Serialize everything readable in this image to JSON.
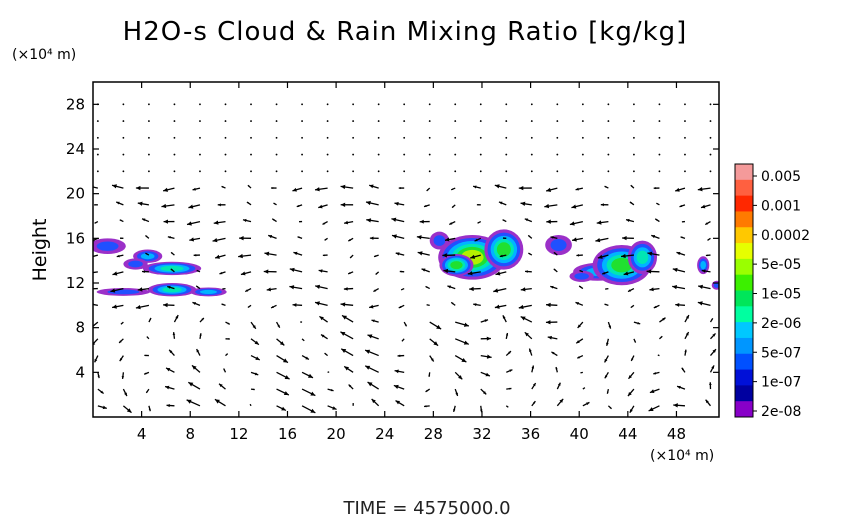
{
  "chart_data": {
    "type": "heatmap",
    "title": "H2O-s Cloud & Rain Mixing Ratio [kg/kg]",
    "ylabel": "Height",
    "xunit": "(×10⁴ m)",
    "yunit": "(×10⁴ m)",
    "footer": "TIME = 4575000.0",
    "xlim": [
      0,
      51.5
    ],
    "ylim": [
      0,
      30
    ],
    "xticks": [
      "4",
      "8",
      "12",
      "16",
      "20",
      "24",
      "28",
      "32",
      "36",
      "40",
      "44",
      "48"
    ],
    "yticks": [
      "4",
      "8",
      "12",
      "16",
      "20",
      "24",
      "28"
    ],
    "colorbar": {
      "labels": [
        "0.005",
        "0.001",
        "0.0002",
        "5e-05",
        "1e-05",
        "2e-06",
        "5e-07",
        "1e-07",
        "2e-08"
      ],
      "colors": [
        "#f49a9a",
        "#ff6040",
        "#ff2800",
        "#ff7a00",
        "#ffc800",
        "#e6ff00",
        "#9aff00",
        "#3cf000",
        "#00e65a",
        "#00ffa0",
        "#00c8ff",
        "#0096ff",
        "#0050ff",
        "#0010d8",
        "#0000a0",
        "#8800c8"
      ]
    },
    "cloud_regions": [
      {
        "x": [
          0,
          11
        ],
        "y": [
          10.5,
          16.5
        ],
        "max_level": "1e-05"
      },
      {
        "x": [
          27,
          35
        ],
        "y": [
          12.5,
          17
        ],
        "max_level": "5e-05"
      },
      {
        "x": [
          37,
          39.5
        ],
        "y": [
          14.5,
          16.5
        ],
        "max_level": "2e-08"
      },
      {
        "x": [
          39.5,
          46.5
        ],
        "y": [
          12,
          16
        ],
        "max_level": "1e-05"
      },
      {
        "x": [
          49.5,
          51.5
        ],
        "y": [
          12.5,
          14.5
        ],
        "max_level": "5e-07"
      }
    ]
  }
}
